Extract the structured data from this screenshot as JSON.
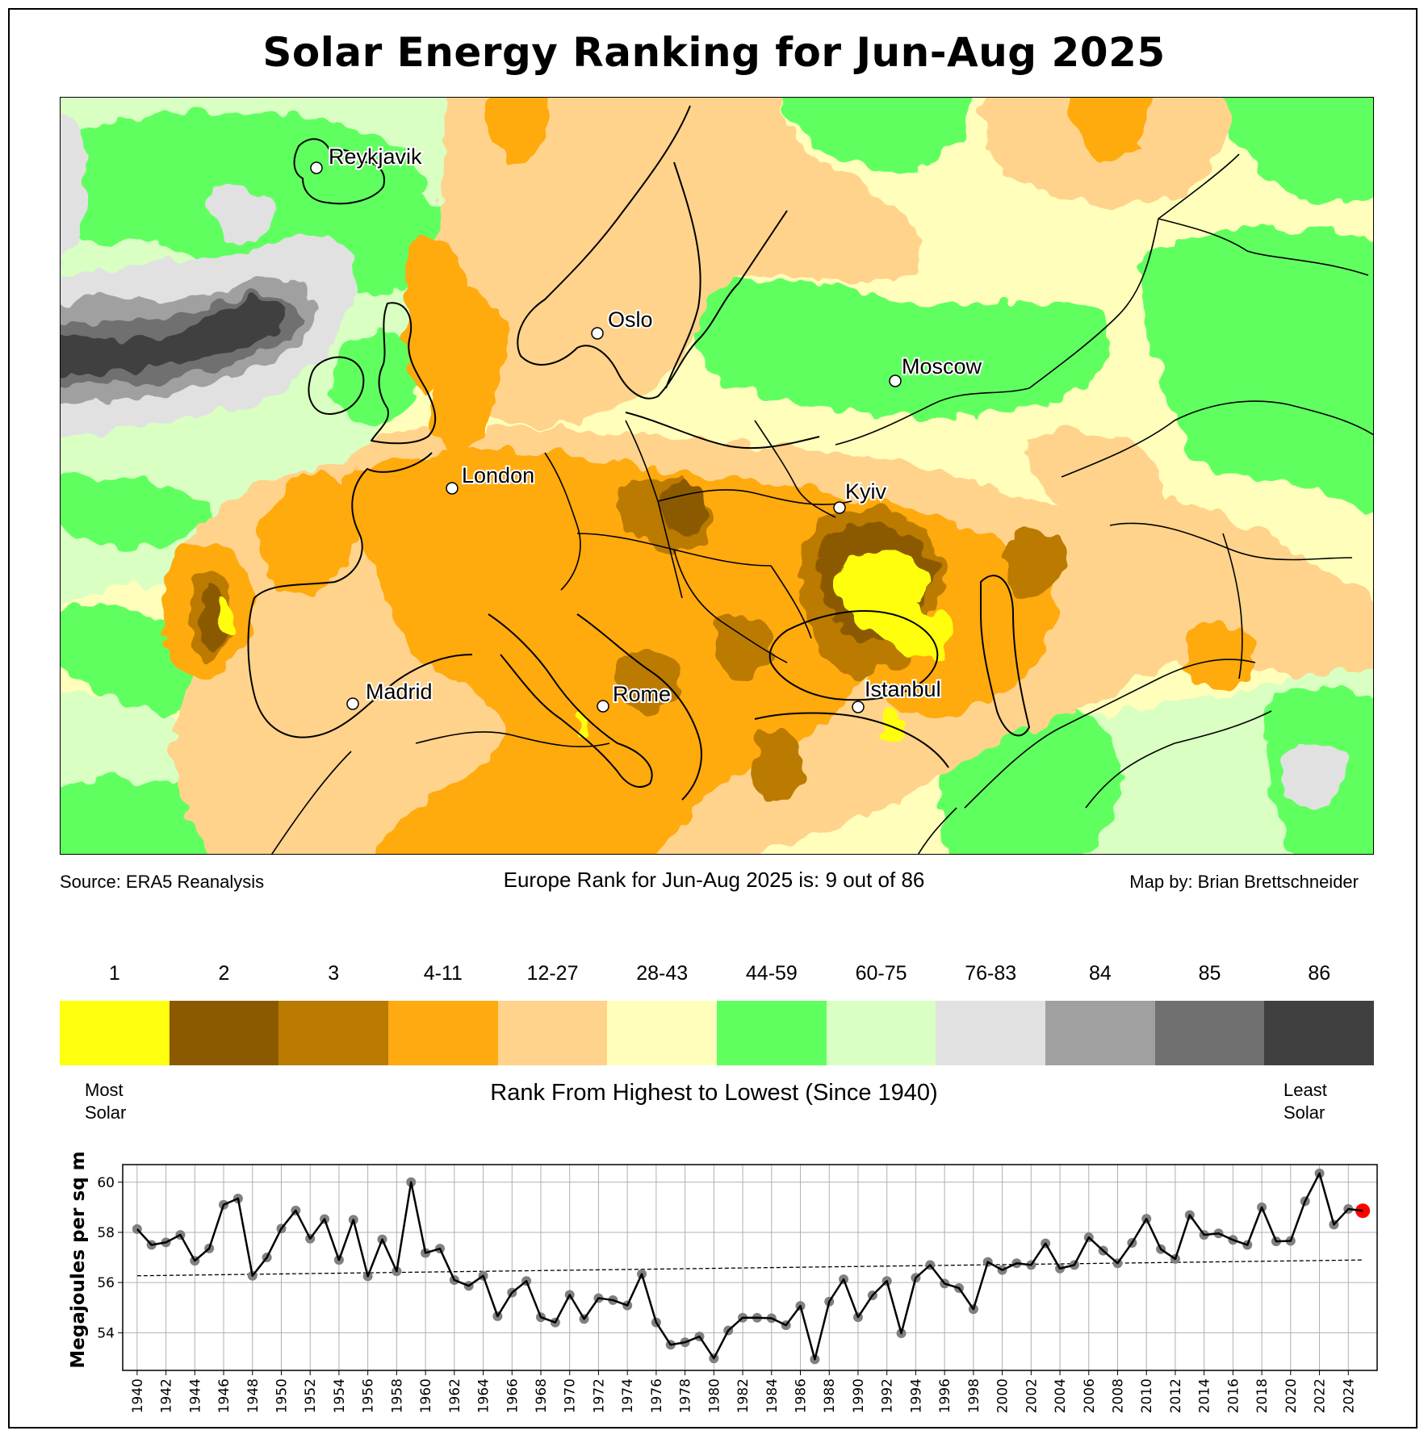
{
  "title": "Solar Energy Ranking for Jun-Aug 2025",
  "map": {
    "region": "Europe",
    "cities": [
      {
        "name": "Reykjavik"
      },
      {
        "name": "Oslo"
      },
      {
        "name": "Moscow"
      },
      {
        "name": "London"
      },
      {
        "name": "Kyiv"
      },
      {
        "name": "Madrid"
      },
      {
        "name": "Rome"
      },
      {
        "name": "Istanbul"
      }
    ]
  },
  "footer": {
    "source": "Source: ERA5 Reanalysis",
    "rank_statement": "Europe Rank for Jun-Aug 2025 is: 9 out of 86",
    "credit": "Map by: Brian Brettschneider",
    "rank_value": 9,
    "rank_total": 86
  },
  "colorbar": {
    "title": "Rank From Highest to Lowest (Since 1940)",
    "left_label_line1": "Most",
    "left_label_line2": "Solar",
    "right_label_line1": "Least",
    "right_label_line2": "Solar",
    "bins": [
      {
        "label": "1",
        "color": "#ffff10"
      },
      {
        "label": "2",
        "color": "#8b5a00"
      },
      {
        "label": "3",
        "color": "#bb7a00"
      },
      {
        "label": "4-11",
        "color": "#ffaa10"
      },
      {
        "label": "12-27",
        "color": "#ffd38c"
      },
      {
        "label": "28-43",
        "color": "#ffffbb"
      },
      {
        "label": "44-59",
        "color": "#60ff60"
      },
      {
        "label": "60-75",
        "color": "#d9ffc2"
      },
      {
        "label": "76-83",
        "color": "#e1e1e1"
      },
      {
        "label": "84",
        "color": "#a0a0a0"
      },
      {
        "label": "85",
        "color": "#707070"
      },
      {
        "label": "86",
        "color": "#404040"
      }
    ]
  },
  "chart_data": {
    "type": "line",
    "title": "",
    "xlabel": "",
    "ylabel": "Megajoules per sq m",
    "xlim": [
      1939,
      2026
    ],
    "ylim": [
      52.5,
      60.7
    ],
    "yticks": [
      54,
      56,
      58,
      60
    ],
    "xticks": [
      1940,
      1942,
      1944,
      1946,
      1948,
      1950,
      1952,
      1954,
      1956,
      1958,
      1960,
      1962,
      1964,
      1966,
      1968,
      1970,
      1972,
      1974,
      1976,
      1978,
      1980,
      1982,
      1984,
      1986,
      1988,
      1990,
      1992,
      1994,
      1996,
      1998,
      2000,
      2002,
      2004,
      2006,
      2008,
      2010,
      2012,
      2014,
      2016,
      2018,
      2020,
      2022,
      2024
    ],
    "grid": true,
    "x": [
      1940,
      1941,
      1942,
      1943,
      1944,
      1945,
      1946,
      1947,
      1948,
      1949,
      1950,
      1951,
      1952,
      1953,
      1954,
      1955,
      1956,
      1957,
      1958,
      1959,
      1960,
      1961,
      1962,
      1963,
      1964,
      1965,
      1966,
      1967,
      1968,
      1969,
      1970,
      1971,
      1972,
      1973,
      1974,
      1975,
      1976,
      1977,
      1978,
      1979,
      1980,
      1981,
      1982,
      1983,
      1984,
      1985,
      1986,
      1987,
      1988,
      1989,
      1990,
      1991,
      1992,
      1993,
      1994,
      1995,
      1996,
      1997,
      1998,
      1999,
      2000,
      2001,
      2002,
      2003,
      2004,
      2005,
      2006,
      2007,
      2008,
      2009,
      2010,
      2011,
      2012,
      2013,
      2014,
      2015,
      2016,
      2017,
      2018,
      2019,
      2020,
      2021,
      2022,
      2023,
      2024,
      2025
    ],
    "series": [
      {
        "name": "Jun-Aug solar energy",
        "color": "#000000",
        "marker_color": "#808080",
        "values": [
          58.13,
          57.5,
          57.6,
          57.9,
          56.87,
          57.36,
          59.1,
          59.35,
          56.27,
          57.0,
          58.15,
          58.87,
          57.75,
          58.53,
          56.9,
          58.5,
          56.25,
          57.72,
          56.45,
          60.0,
          57.18,
          57.35,
          56.1,
          55.87,
          56.27,
          54.66,
          55.6,
          56.06,
          54.62,
          54.41,
          55.51,
          54.55,
          55.38,
          55.3,
          55.09,
          56.34,
          54.41,
          53.52,
          53.62,
          53.85,
          52.98,
          54.09,
          54.6,
          54.6,
          54.58,
          54.3,
          55.07,
          52.94,
          55.24,
          56.13,
          54.62,
          55.49,
          56.06,
          53.98,
          56.19,
          56.7,
          55.96,
          55.78,
          54.94,
          56.82,
          56.5,
          56.77,
          56.7,
          57.56,
          56.56,
          56.7,
          57.8,
          57.27,
          56.77,
          57.58,
          58.54,
          57.33,
          56.94,
          58.69,
          57.9,
          57.96,
          57.7,
          57.5,
          59.0,
          57.64,
          57.66,
          59.24,
          60.35,
          58.31,
          58.93,
          58.86
        ]
      },
      {
        "name": "Linear trend",
        "style": "dashed",
        "color": "#000000",
        "x": [
          1940,
          2025
        ],
        "values": [
          56.27,
          56.9
        ]
      }
    ],
    "highlight": {
      "x": 2025,
      "value": 58.86,
      "color": "#ff0000"
    }
  }
}
